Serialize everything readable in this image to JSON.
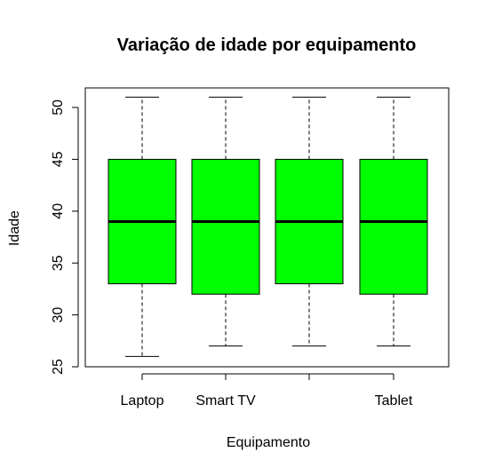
{
  "chart_data": {
    "type": "boxplot",
    "title": "Variação de idade por equipamento",
    "xlabel": "Equipamento",
    "ylabel": "Idade",
    "categories": [
      "Laptop",
      "Smart TV",
      "",
      "Tablet"
    ],
    "ylim": [
      25,
      52
    ],
    "yticks": [
      25,
      30,
      35,
      40,
      45,
      50
    ],
    "box_color": "#00ff00",
    "boxes": [
      {
        "min": 26,
        "q1": 33,
        "median": 39,
        "q3": 45,
        "max": 51
      },
      {
        "min": 27,
        "q1": 32,
        "median": 39,
        "q3": 45,
        "max": 51
      },
      {
        "min": 27,
        "q1": 33,
        "median": 39,
        "q3": 45,
        "max": 51
      },
      {
        "min": 27,
        "q1": 32,
        "median": 39,
        "q3": 45,
        "max": 51
      }
    ],
    "grid": false,
    "legend": "none"
  }
}
